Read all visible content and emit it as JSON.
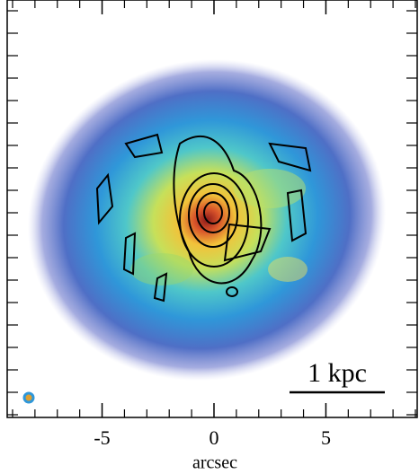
{
  "chart_data": {
    "type": "image",
    "xlabel": "arcsec",
    "annotation": "1 kpc",
    "xlim": [
      -9.24,
      9.08
    ],
    "xticks": [
      -5,
      0,
      5
    ],
    "xminor_ticks": [
      -9,
      -8,
      -7,
      -6,
      -4,
      -3,
      -2,
      -1,
      1,
      2,
      3,
      4,
      6,
      7,
      8,
      9
    ],
    "ylim": [
      -9.12,
      9.48
    ],
    "yminor_ticks": [
      -9,
      -8,
      -7,
      -6,
      -5,
      -4,
      -3,
      -2,
      -1,
      0,
      1,
      2,
      3,
      4,
      5,
      6,
      7,
      8,
      9
    ]
  }
}
